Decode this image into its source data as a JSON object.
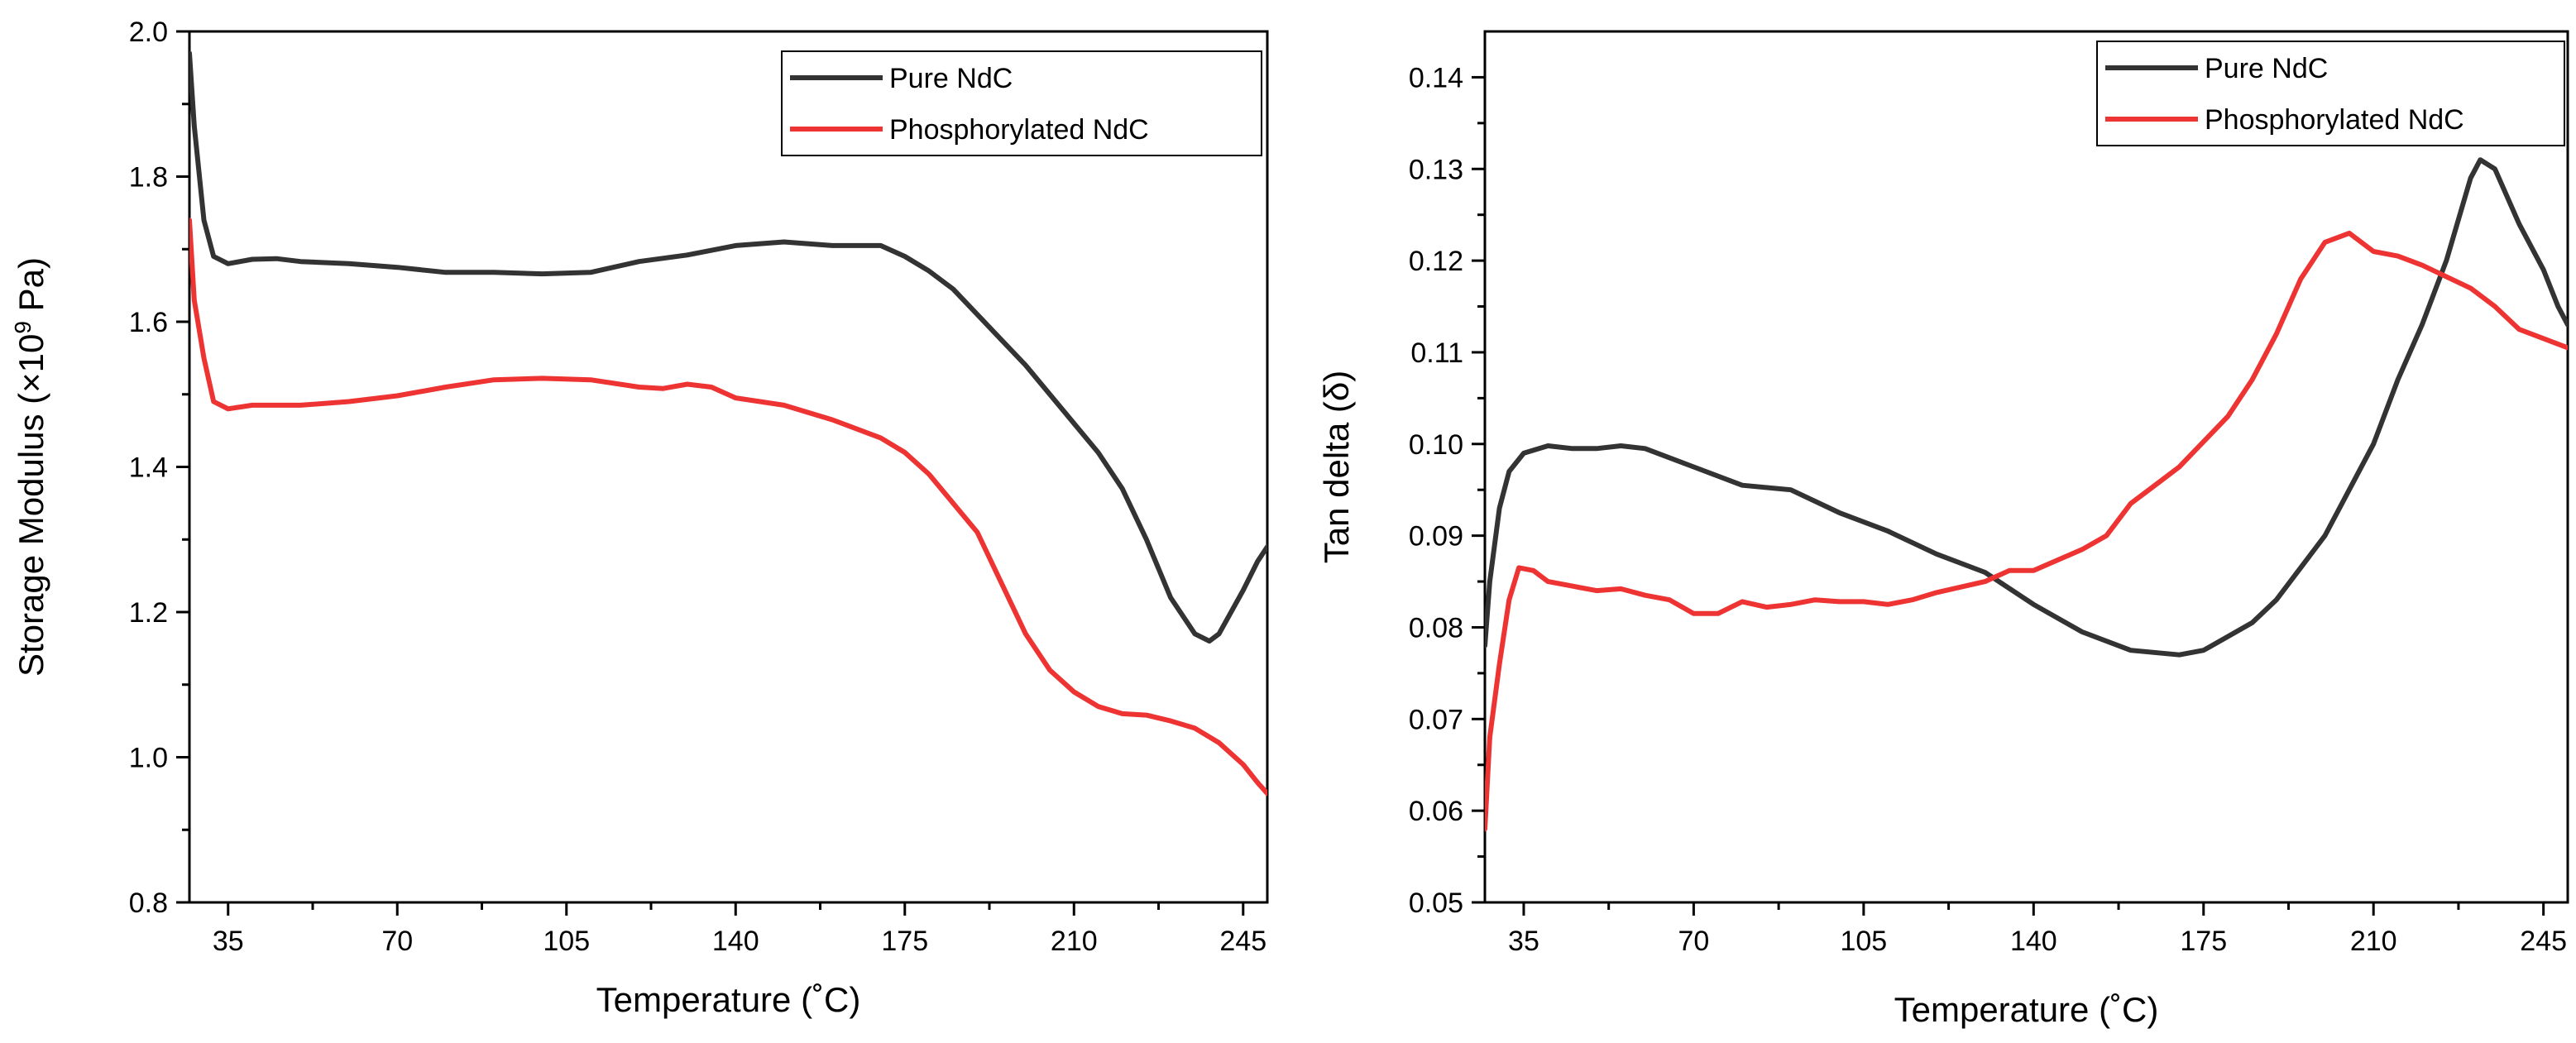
{
  "chart_data": [
    {
      "type": "line",
      "xlabel": "Temperature (˚C)",
      "ylabel": "Storage Modulus (×10^9 Pa)",
      "ylabel_parts": {
        "pre": "Storage Modulus (",
        "sup": "×10",
        "exp": "9",
        "post": " Pa)"
      },
      "xlim": [
        27,
        250
      ],
      "ylim": [
        0.8,
        2.0
      ],
      "xticks": [
        35,
        70,
        105,
        140,
        175,
        210,
        245
      ],
      "xtick_labels": [
        "35",
        "70",
        "105",
        "140",
        "175",
        "210",
        "245"
      ],
      "yticks": [
        0.8,
        1.0,
        1.2,
        1.4,
        1.6,
        1.8,
        2.0
      ],
      "ytick_labels": [
        "0.8",
        "1.0",
        "1.2",
        "1.4",
        "1.6",
        "1.8",
        "2.0"
      ],
      "legend_position": "top-right",
      "series": [
        {
          "name": "Pure NdC",
          "color": "#333333",
          "x": [
            27,
            28,
            30,
            32,
            35,
            40,
            45,
            50,
            60,
            70,
            80,
            90,
            100,
            110,
            120,
            130,
            140,
            150,
            160,
            170,
            175,
            180,
            185,
            190,
            195,
            200,
            205,
            210,
            215,
            220,
            225,
            230,
            235,
            238,
            240,
            245,
            248,
            250
          ],
          "y": [
            1.97,
            1.87,
            1.74,
            1.69,
            1.68,
            1.686,
            1.687,
            1.683,
            1.68,
            1.675,
            1.668,
            1.668,
            1.666,
            1.668,
            1.683,
            1.692,
            1.705,
            1.71,
            1.705,
            1.705,
            1.69,
            1.67,
            1.645,
            1.61,
            1.575,
            1.54,
            1.5,
            1.46,
            1.42,
            1.37,
            1.3,
            1.22,
            1.17,
            1.16,
            1.17,
            1.23,
            1.27,
            1.29
          ]
        },
        {
          "name": "Phosphorylated NdC",
          "color": "#ee3333",
          "x": [
            27,
            28,
            30,
            32,
            35,
            40,
            50,
            60,
            70,
            80,
            90,
            100,
            110,
            120,
            125,
            130,
            135,
            140,
            150,
            160,
            170,
            175,
            180,
            185,
            190,
            195,
            200,
            205,
            210,
            215,
            220,
            225,
            230,
            235,
            240,
            245,
            248,
            250
          ],
          "y": [
            1.74,
            1.63,
            1.55,
            1.49,
            1.48,
            1.485,
            1.485,
            1.49,
            1.498,
            1.51,
            1.52,
            1.522,
            1.52,
            1.51,
            1.508,
            1.514,
            1.51,
            1.495,
            1.485,
            1.465,
            1.44,
            1.42,
            1.39,
            1.35,
            1.31,
            1.24,
            1.17,
            1.12,
            1.09,
            1.07,
            1.06,
            1.058,
            1.05,
            1.04,
            1.02,
            0.99,
            0.965,
            0.95
          ]
        }
      ]
    },
    {
      "type": "line",
      "xlabel": "Temperature (˚C)",
      "ylabel": "Tan delta (δ)",
      "xlim": [
        27,
        250
      ],
      "ylim": [
        0.05,
        0.145
      ],
      "xticks": [
        35,
        70,
        105,
        140,
        175,
        210,
        245
      ],
      "xtick_labels": [
        "35",
        "70",
        "105",
        "140",
        "175",
        "210",
        "245"
      ],
      "yticks": [
        0.05,
        0.06,
        0.07,
        0.08,
        0.09,
        0.1,
        0.11,
        0.12,
        0.13,
        0.14
      ],
      "ytick_labels": [
        "0.05",
        "0.06",
        "0.07",
        "0.08",
        "0.09",
        "0.10",
        "0.11",
        "0.12",
        "0.13",
        "0.14"
      ],
      "legend_position": "top-right",
      "series": [
        {
          "name": "Pure NdC",
          "color": "#333333",
          "x": [
            27,
            28,
            30,
            32,
            35,
            40,
            45,
            50,
            55,
            60,
            70,
            80,
            90,
            100,
            110,
            120,
            130,
            140,
            150,
            160,
            170,
            175,
            180,
            185,
            190,
            200,
            210,
            215,
            220,
            225,
            230,
            232,
            235,
            240,
            245,
            248,
            250
          ],
          "y": [
            0.078,
            0.085,
            0.093,
            0.097,
            0.099,
            0.0998,
            0.0995,
            0.0995,
            0.0998,
            0.0995,
            0.0975,
            0.0955,
            0.095,
            0.0925,
            0.0905,
            0.088,
            0.086,
            0.0825,
            0.0795,
            0.0775,
            0.077,
            0.0775,
            0.079,
            0.0805,
            0.083,
            0.09,
            0.1,
            0.107,
            0.113,
            0.12,
            0.129,
            0.131,
            0.13,
            0.124,
            0.119,
            0.115,
            0.113
          ]
        },
        {
          "name": "Phosphorylated NdC",
          "color": "#ee3333",
          "x": [
            27,
            28,
            30,
            32,
            34,
            37,
            40,
            45,
            50,
            55,
            60,
            65,
            70,
            75,
            80,
            85,
            90,
            95,
            100,
            105,
            110,
            115,
            120,
            130,
            135,
            140,
            150,
            155,
            160,
            165,
            170,
            180,
            185,
            190,
            195,
            200,
            205,
            210,
            215,
            220,
            230,
            235,
            240,
            245,
            250
          ],
          "y": [
            0.058,
            0.068,
            0.076,
            0.083,
            0.0865,
            0.0862,
            0.085,
            0.0845,
            0.084,
            0.0842,
            0.0835,
            0.083,
            0.0815,
            0.0815,
            0.0828,
            0.0822,
            0.0825,
            0.083,
            0.0828,
            0.0828,
            0.0825,
            0.083,
            0.0838,
            0.085,
            0.0862,
            0.0862,
            0.0885,
            0.09,
            0.0935,
            0.0955,
            0.0975,
            0.103,
            0.107,
            0.112,
            0.118,
            0.122,
            0.123,
            0.121,
            0.1205,
            0.1195,
            0.117,
            0.115,
            0.1125,
            0.1115,
            0.1105
          ]
        }
      ]
    }
  ]
}
